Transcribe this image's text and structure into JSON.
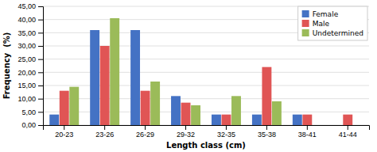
{
  "chart_data": {
    "type": "bar",
    "categories": [
      "20-23",
      "23-26",
      "26-29",
      "29-32",
      "32-35",
      "35-38",
      "38-41",
      "41-44"
    ],
    "series": [
      {
        "name": "Female",
        "color": "#4472c4",
        "values": [
          4.0,
          36.0,
          36.0,
          11.0,
          4.0,
          4.0,
          4.0,
          0.0
        ]
      },
      {
        "name": "Male",
        "color": "#e05555",
        "values": [
          13.0,
          30.0,
          13.0,
          8.5,
          4.0,
          22.0,
          4.0,
          4.0
        ]
      },
      {
        "name": "Undetermined",
        "color": "#9bbb59",
        "values": [
          14.5,
          40.5,
          16.5,
          7.5,
          11.0,
          9.0,
          0.0,
          0.0
        ]
      }
    ],
    "xlabel": "Length class (cm)",
    "ylabel": "Frequency  (%)",
    "ylim": [
      0,
      45
    ],
    "yticks": [
      {
        "value": 0.0,
        "label": "0,00"
      },
      {
        "value": 5.0,
        "label": "5,00"
      },
      {
        "value": 10.0,
        "label": "10,00"
      },
      {
        "value": 15.0,
        "label": "15,00"
      },
      {
        "value": 20.0,
        "label": "20,00"
      },
      {
        "value": 25.0,
        "label": "25,00"
      },
      {
        "value": 30.0,
        "label": "30,00"
      },
      {
        "value": 35.0,
        "label": "35,00"
      },
      {
        "value": 40.0,
        "label": "40,00"
      },
      {
        "value": 45.0,
        "label": "45,00"
      }
    ],
    "grid": true,
    "legend": "upper right"
  }
}
